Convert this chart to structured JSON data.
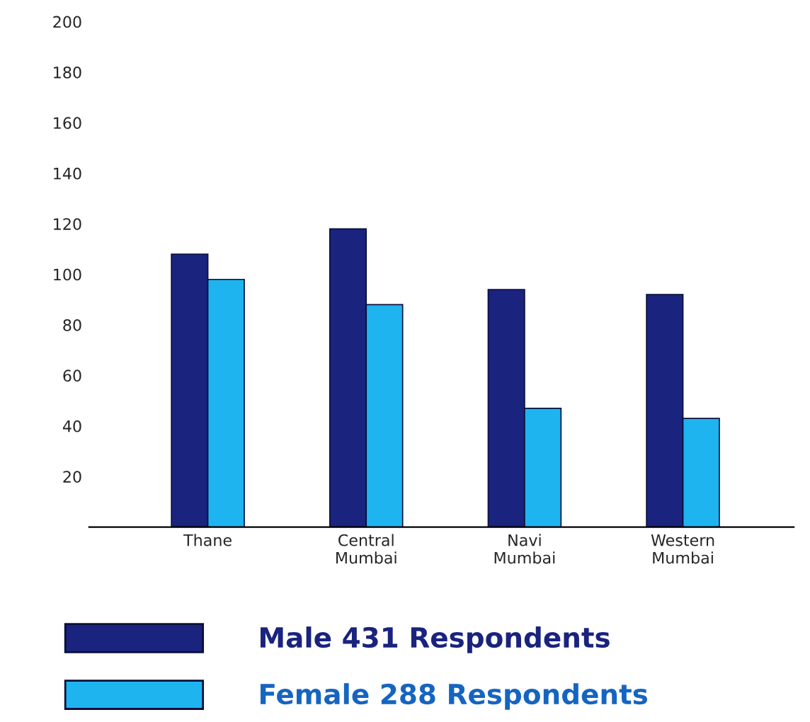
{
  "chart_data": {
    "type": "bar",
    "categories": [
      "Thane",
      "Central\nMumbai",
      "Navi\nMumbai",
      "Western\nMumbai"
    ],
    "series": [
      {
        "name": "Male 431 Respondents",
        "color": "#1a237e",
        "values": [
          108,
          118,
          94,
          92
        ]
      },
      {
        "name": "Female 288 Respondents",
        "color": "#1eb4f0",
        "values": [
          98,
          88,
          47,
          43
        ]
      }
    ],
    "ylim": [
      0,
      200
    ],
    "yticks": [
      20,
      40,
      60,
      80,
      100,
      120,
      140,
      160,
      180,
      200
    ],
    "grid": false,
    "legend": "bottom"
  }
}
